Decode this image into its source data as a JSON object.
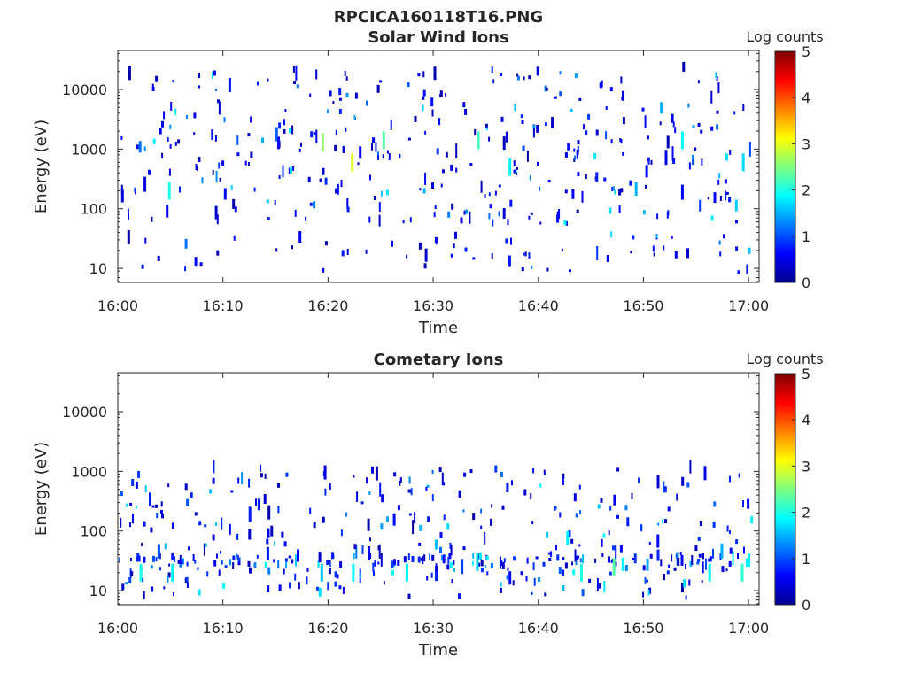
{
  "figure": {
    "title": "RPCICA160118T16.PNG"
  },
  "chart_data": [
    {
      "type": "heatmap",
      "title": "Solar Wind Ions",
      "xlabel": "Time",
      "ylabel": "Energy (eV)",
      "x_ticks": [
        "16:00",
        "16:10",
        "16:20",
        "16:30",
        "16:40",
        "16:50",
        "17:00"
      ],
      "x_range_minutes": [
        0,
        61
      ],
      "y_scale": "log",
      "y_ticks": [
        10,
        100,
        1000,
        10000
      ],
      "y_tick_labels": [
        "10",
        "100",
        "1000",
        "10000"
      ],
      "y_range": [
        5.8,
        45000
      ],
      "colorbar": {
        "label": "Log counts",
        "ticks": [
          "0",
          "1",
          "2",
          "3",
          "4",
          "5"
        ],
        "range": [
          0,
          5
        ],
        "colormap": "jet"
      },
      "hot_spots": [
        {
          "t": 22.3,
          "e": 600,
          "v": 3.0
        },
        {
          "t": 19.5,
          "e": 1300,
          "v": 2.6
        },
        {
          "t": 25.3,
          "e": 1400,
          "v": 2.3
        },
        {
          "t": 34.3,
          "e": 1400,
          "v": 2.2
        },
        {
          "t": 4.9,
          "e": 200,
          "v": 2.0
        },
        {
          "t": 53.7,
          "e": 1400,
          "v": 1.9
        },
        {
          "t": 37.3,
          "e": 500,
          "v": 1.8
        },
        {
          "t": 59.5,
          "e": 600,
          "v": 1.7
        }
      ]
    },
    {
      "type": "heatmap",
      "title": "Cometary Ions",
      "xlabel": "Time",
      "ylabel": "Energy (eV)",
      "x_ticks": [
        "16:00",
        "16:10",
        "16:20",
        "16:30",
        "16:40",
        "16:50",
        "17:00"
      ],
      "x_range_minutes": [
        0,
        61
      ],
      "y_scale": "log",
      "y_ticks": [
        10,
        100,
        1000,
        10000
      ],
      "y_tick_labels": [
        "10",
        "100",
        "1000",
        "10000"
      ],
      "y_range": [
        5.8,
        45000
      ],
      "colorbar": {
        "label": "Log counts",
        "ticks": [
          "0",
          "1",
          "2",
          "3",
          "4",
          "5"
        ],
        "range": [
          0,
          5
        ],
        "colormap": "jet"
      },
      "hot_spots": [
        {
          "t": 2.2,
          "e": 20,
          "v": 2.0
        },
        {
          "t": 5.2,
          "e": 20,
          "v": 1.8
        },
        {
          "t": 19.4,
          "e": 20,
          "v": 1.6
        },
        {
          "t": 22.4,
          "e": 20,
          "v": 1.9
        },
        {
          "t": 27.5,
          "e": 20,
          "v": 1.8
        },
        {
          "t": 34.2,
          "e": 30,
          "v": 1.7
        },
        {
          "t": 44.1,
          "e": 20,
          "v": 2.0
        },
        {
          "t": 47.2,
          "e": 25,
          "v": 2.3
        },
        {
          "t": 56.3,
          "e": 20,
          "v": 1.9
        },
        {
          "t": 59.4,
          "e": 20,
          "v": 2.1
        }
      ]
    }
  ]
}
